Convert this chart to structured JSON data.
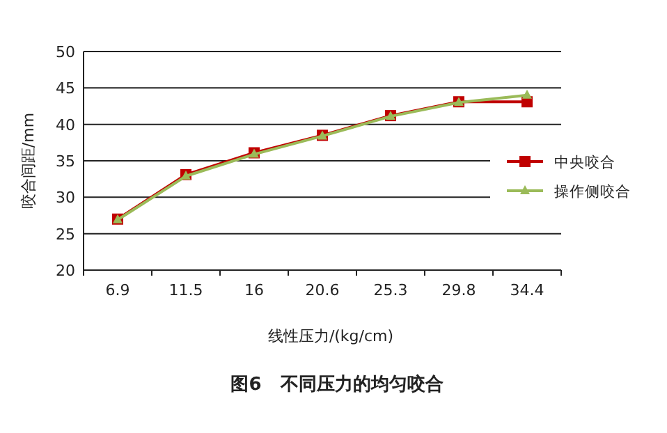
{
  "chart_data": {
    "type": "line",
    "title": "图6   不同压力的均匀咬合",
    "xlabel": "线性压力/(kg/cm)",
    "ylabel": "咬合间距/mm",
    "categories": [
      "6.9",
      "11.5",
      "16",
      "20.6",
      "25.3",
      "29.8",
      "34.4"
    ],
    "series": [
      {
        "name": "中央咬合",
        "color": "#c00000",
        "marker": "square",
        "values": [
          27.0,
          33.1,
          36.1,
          38.5,
          41.2,
          43.1,
          43.1
        ]
      },
      {
        "name": "操作侧咬合",
        "color": "#9bbb59",
        "marker": "triangle",
        "values": [
          26.9,
          32.9,
          35.9,
          38.4,
          41.1,
          43.0,
          44.0
        ]
      }
    ],
    "ylim": [
      20,
      50
    ],
    "yticks": [
      20,
      25,
      30,
      35,
      40,
      45,
      50
    ],
    "grid": "y",
    "legend": "right",
    "line_style": "solid"
  }
}
